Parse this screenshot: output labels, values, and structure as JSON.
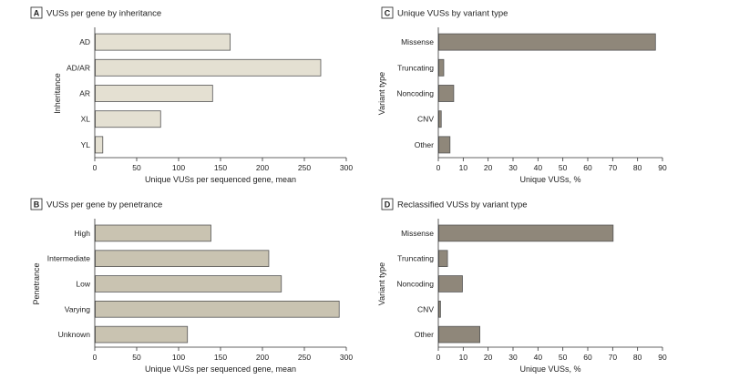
{
  "figure": {
    "panels": [
      {
        "letter": "A",
        "title": "VUSs per gene by inheritance"
      },
      {
        "letter": "B",
        "title": "VUSs per gene by penetrance"
      },
      {
        "letter": "C",
        "title": "Unique VUSs by variant type"
      },
      {
        "letter": "D",
        "title": "Reclassified VUSs by variant type"
      }
    ]
  },
  "colors": {
    "light_bar": "#e4e0d2",
    "mid_bar": "#c9c3b1",
    "dark_bar": "#8f877a"
  },
  "chart_data": [
    {
      "id": "A",
      "type": "bar",
      "orientation": "horizontal",
      "title": "VUSs per gene by inheritance",
      "categories": [
        "AD",
        "AD/AR",
        "AR",
        "XL",
        "YL"
      ],
      "values": [
        161,
        269,
        140,
        78,
        9
      ],
      "xlabel": "Unique VUSs per sequenced gene, mean",
      "ylabel": "Inheritance",
      "xlim": [
        0,
        300
      ],
      "xticks": [
        0,
        50,
        100,
        150,
        200,
        250,
        300
      ],
      "grid": false,
      "bar_color": "#e4e0d2"
    },
    {
      "id": "B",
      "type": "bar",
      "orientation": "horizontal",
      "title": "VUSs per gene by penetrance",
      "categories": [
        "High",
        "Intermediate",
        "Low",
        "Varying",
        "Unknown"
      ],
      "values": [
        138,
        207,
        222,
        291,
        110
      ],
      "xlabel": "Unique VUSs per sequenced gene, mean",
      "ylabel": "Penetrance",
      "xlim": [
        0,
        300
      ],
      "xticks": [
        0,
        50,
        100,
        150,
        200,
        250,
        300
      ],
      "grid": false,
      "bar_color": "#c9c3b1"
    },
    {
      "id": "C",
      "type": "bar",
      "orientation": "horizontal",
      "title": "Unique VUSs by variant type",
      "categories": [
        "Missense",
        "Truncating",
        "Noncoding",
        "CNV",
        "Other"
      ],
      "values": [
        87,
        2,
        6,
        1,
        4.5
      ],
      "xlabel": "Unique VUSs, %",
      "ylabel": "Variant type",
      "xlim": [
        0,
        90
      ],
      "xticks": [
        0,
        10,
        20,
        30,
        40,
        50,
        60,
        70,
        80,
        90
      ],
      "grid": false,
      "bar_color": "#8f877a"
    },
    {
      "id": "D",
      "type": "bar",
      "orientation": "horizontal",
      "title": "Reclassified VUSs by variant type",
      "categories": [
        "Missense",
        "Truncating",
        "Noncoding",
        "CNV",
        "Other"
      ],
      "values": [
        70,
        3.5,
        9.5,
        0.7,
        16.5
      ],
      "xlabel": "Unique VUSs, %",
      "ylabel": "Variant type",
      "xlim": [
        0,
        90
      ],
      "xticks": [
        0,
        10,
        20,
        30,
        40,
        50,
        60,
        70,
        80,
        90
      ],
      "grid": false,
      "bar_color": "#8f877a"
    }
  ]
}
